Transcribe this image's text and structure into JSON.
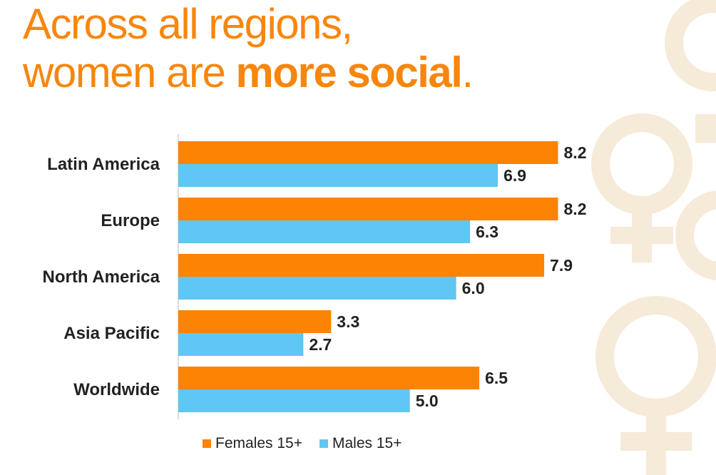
{
  "title": {
    "line1": "Across all regions,",
    "line2_prefix": "women are ",
    "line2_bold": "more social",
    "line2_suffix": "."
  },
  "colors": {
    "title": "#f7860d",
    "females": "#fc8303",
    "males": "#60c6f3",
    "text": "#222222",
    "decoration": "#f6ead8"
  },
  "chart_data": {
    "type": "bar",
    "orientation": "horizontal",
    "title": "Across all regions, women are more social.",
    "categories": [
      "Latin America",
      "Europe",
      "North America",
      "Asia Pacific",
      "Worldwide"
    ],
    "series": [
      {
        "name": "Females 15+",
        "values": [
          8.2,
          8.2,
          7.9,
          3.3,
          6.5
        ],
        "labels": [
          "8.2",
          "8.2",
          "7.9",
          "3.3",
          "6.5"
        ]
      },
      {
        "name": "Males 15+",
        "values": [
          6.9,
          6.3,
          6.0,
          2.7,
          5.0
        ],
        "labels": [
          "6.9",
          "6.3",
          "6.0",
          "2.7",
          "5.0"
        ]
      }
    ],
    "xlim": [
      0,
      8.7
    ],
    "grid": false,
    "legend_position": "bottom"
  },
  "legend": {
    "females": "Females 15+",
    "males": "Males 15+"
  }
}
